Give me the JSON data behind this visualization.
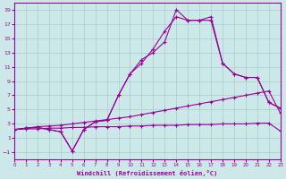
{
  "xlabel": "Windchill (Refroidissement éolien,°C)",
  "background_color": "#cce8e8",
  "grid_color": "#aacccc",
  "line_color": "#990099",
  "xlim": [
    0,
    23
  ],
  "ylim": [
    -2,
    20
  ],
  "xticks": [
    0,
    1,
    2,
    3,
    4,
    5,
    6,
    7,
    8,
    9,
    10,
    11,
    12,
    13,
    14,
    15,
    16,
    17,
    18,
    19,
    20,
    21,
    22,
    23
  ],
  "yticks": [
    -1,
    1,
    3,
    5,
    7,
    9,
    11,
    13,
    15,
    17,
    19
  ],
  "line1_x": [
    0,
    1,
    2,
    3,
    4,
    5,
    6,
    7,
    8,
    9,
    10,
    11,
    12,
    13,
    14,
    15,
    16,
    17,
    18,
    19,
    20,
    21,
    22,
    23
  ],
  "line1_y": [
    2.2,
    2.3,
    2.3,
    2.4,
    2.4,
    2.5,
    2.5,
    2.6,
    2.6,
    2.6,
    2.7,
    2.7,
    2.8,
    2.8,
    2.8,
    2.9,
    2.9,
    2.9,
    3.0,
    3.0,
    3.0,
    3.1,
    3.1,
    2.0
  ],
  "line2_x": [
    0,
    1,
    2,
    3,
    4,
    5,
    6,
    7,
    8,
    9,
    10,
    11,
    12,
    13,
    14,
    15,
    16,
    17,
    18,
    19,
    20,
    21,
    22,
    23
  ],
  "line2_y": [
    2.2,
    2.4,
    2.6,
    2.7,
    2.8,
    3.0,
    3.2,
    3.4,
    3.6,
    3.8,
    4.0,
    4.3,
    4.6,
    4.9,
    5.2,
    5.5,
    5.8,
    6.1,
    6.4,
    6.7,
    7.0,
    7.3,
    7.6,
    4.5
  ],
  "line3_x": [
    0,
    1,
    2,
    3,
    4,
    5,
    6,
    7,
    8,
    9,
    10,
    11,
    12,
    13,
    14,
    15,
    16,
    17,
    18,
    19,
    20,
    21,
    22,
    23
  ],
  "line3_y": [
    2.2,
    2.4,
    2.5,
    2.2,
    1.9,
    -0.8,
    2.2,
    3.3,
    3.5,
    7.0,
    10.0,
    12.0,
    13.0,
    14.5,
    19.0,
    17.5,
    17.5,
    18.0,
    11.5,
    10.0,
    9.5,
    9.5,
    6.0,
    5.2
  ],
  "line4_x": [
    0,
    1,
    2,
    3,
    4,
    5,
    6,
    7,
    8,
    9,
    10,
    11,
    12,
    13,
    14,
    15,
    16,
    17,
    18,
    19,
    20,
    21,
    22,
    23
  ],
  "line4_y": [
    2.2,
    2.4,
    2.5,
    2.2,
    1.9,
    -0.8,
    2.2,
    3.3,
    3.5,
    7.0,
    10.0,
    11.5,
    13.5,
    16.0,
    18.0,
    17.5,
    17.5,
    17.5,
    11.5,
    10.0,
    9.5,
    9.5,
    6.0,
    5.2
  ]
}
